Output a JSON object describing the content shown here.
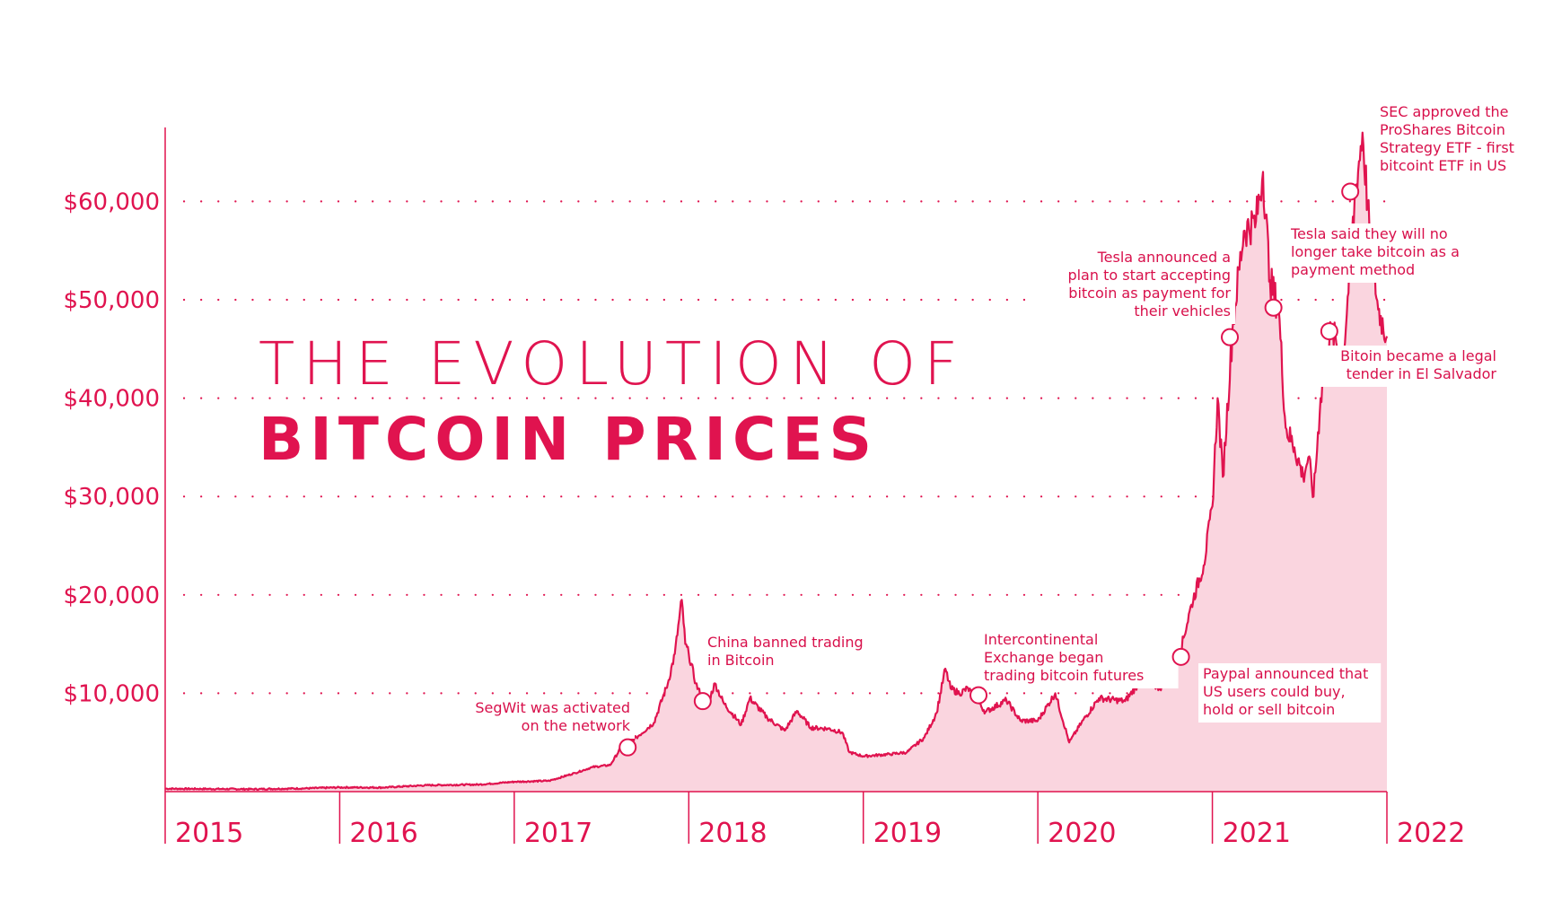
{
  "colors": {
    "accent": "#e0134f",
    "fill": "#fad5df",
    "background": "#ffffff"
  },
  "title": {
    "line1": "THE EVOLUTION OF",
    "line2": "BITCOIN PRICES"
  },
  "chart_data": {
    "type": "area",
    "title": "THE EVOLUTION OF BITCOIN PRICES",
    "xlabel": "",
    "ylabel": "",
    "xlim": [
      2015,
      2022
    ],
    "ylim": [
      0,
      67000
    ],
    "grid": "horizontal dotted",
    "x_ticks": [
      "2015",
      "2016",
      "2017",
      "2018",
      "2019",
      "2020",
      "2021",
      "2022"
    ],
    "y_ticks": [
      {
        "value": 10000,
        "label": "$10,000"
      },
      {
        "value": 20000,
        "label": "$20,000"
      },
      {
        "value": 30000,
        "label": "$30,000"
      },
      {
        "value": 40000,
        "label": "$40,000"
      },
      {
        "value": 50000,
        "label": "$50,000"
      },
      {
        "value": 60000,
        "label": "$60,000"
      }
    ],
    "points": [
      [
        2015.0,
        300
      ],
      [
        2015.5,
        250
      ],
      [
        2015.8,
        330
      ],
      [
        2016.0,
        430
      ],
      [
        2016.25,
        420
      ],
      [
        2016.5,
        650
      ],
      [
        2016.8,
        720
      ],
      [
        2017.0,
        1000
      ],
      [
        2017.2,
        1100
      ],
      [
        2017.35,
        1900
      ],
      [
        2017.45,
        2500
      ],
      [
        2017.55,
        2700
      ],
      [
        2017.62,
        4700
      ],
      [
        2017.7,
        5500
      ],
      [
        2017.8,
        7000
      ],
      [
        2017.88,
        11000
      ],
      [
        2017.92,
        14000
      ],
      [
        2017.96,
        19500
      ],
      [
        2017.98,
        15000
      ],
      [
        2018.0,
        14000
      ],
      [
        2018.04,
        11000
      ],
      [
        2018.1,
        8500
      ],
      [
        2018.15,
        11000
      ],
      [
        2018.2,
        9000
      ],
      [
        2018.3,
        6800
      ],
      [
        2018.35,
        9500
      ],
      [
        2018.45,
        7500
      ],
      [
        2018.55,
        6200
      ],
      [
        2018.62,
        8200
      ],
      [
        2018.7,
        6500
      ],
      [
        2018.8,
        6400
      ],
      [
        2018.88,
        6000
      ],
      [
        2018.92,
        4000
      ],
      [
        2019.0,
        3600
      ],
      [
        2019.15,
        3800
      ],
      [
        2019.25,
        4000
      ],
      [
        2019.35,
        5500
      ],
      [
        2019.42,
        8000
      ],
      [
        2019.47,
        12500
      ],
      [
        2019.5,
        10500
      ],
      [
        2019.55,
        10000
      ],
      [
        2019.6,
        10500
      ],
      [
        2019.7,
        8100
      ],
      [
        2019.82,
        9300
      ],
      [
        2019.9,
        7200
      ],
      [
        2020.0,
        7200
      ],
      [
        2020.1,
        10000
      ],
      [
        2020.18,
        5000
      ],
      [
        2020.25,
        7000
      ],
      [
        2020.35,
        9500
      ],
      [
        2020.5,
        9200
      ],
      [
        2020.6,
        11500
      ],
      [
        2020.7,
        10500
      ],
      [
        2020.8,
        13000
      ],
      [
        2020.88,
        19000
      ],
      [
        2020.95,
        23000
      ],
      [
        2021.0,
        29000
      ],
      [
        2021.03,
        40000
      ],
      [
        2021.06,
        32000
      ],
      [
        2021.12,
        48000
      ],
      [
        2021.18,
        57000
      ],
      [
        2021.25,
        58000
      ],
      [
        2021.29,
        63000
      ],
      [
        2021.33,
        52000
      ],
      [
        2021.38,
        49000
      ],
      [
        2021.42,
        37000
      ],
      [
        2021.47,
        35000
      ],
      [
        2021.52,
        32000
      ],
      [
        2021.55,
        34000
      ],
      [
        2021.58,
        30000
      ],
      [
        2021.62,
        40000
      ],
      [
        2021.68,
        47000
      ],
      [
        2021.75,
        44000
      ],
      [
        2021.82,
        61000
      ],
      [
        2021.86,
        67000
      ],
      [
        2021.9,
        57000
      ],
      [
        2021.95,
        49000
      ],
      [
        2022.0,
        46300
      ]
    ],
    "annotations": [
      {
        "x": 2017.65,
        "y": 4500,
        "lines": [
          "SegWit was activated",
          "on the network"
        ]
      },
      {
        "x": 2018.08,
        "y": 9200,
        "lines": [
          "China banned trading",
          "in Bitcoin"
        ]
      },
      {
        "x": 2019.66,
        "y": 9800,
        "lines": [
          "Intercontinental",
          "Exchange began",
          "trading bitcoin futures"
        ]
      },
      {
        "x": 2020.82,
        "y": 13700,
        "lines": [
          "Paypal announced that",
          "US users could buy,",
          "hold or sell bitcoin"
        ]
      },
      {
        "x": 2021.1,
        "y": 46200,
        "lines": [
          "Tesla announced a",
          "plan to start accepting",
          "bitcoin as payment for",
          "their vehicles"
        ]
      },
      {
        "x": 2021.35,
        "y": 49200,
        "lines": [
          "Tesla said they will no",
          "longer take bitcoin as a",
          "payment method"
        ]
      },
      {
        "x": 2021.67,
        "y": 46800,
        "lines": [
          "Bitoin became a legal",
          "tender in El Salvador"
        ]
      },
      {
        "x": 2021.79,
        "y": 61000,
        "lines": [
          "SEC approved the",
          "ProShares Bitcoin",
          "Strategy ETF - first",
          "bitcoint ETF in US"
        ]
      }
    ]
  }
}
